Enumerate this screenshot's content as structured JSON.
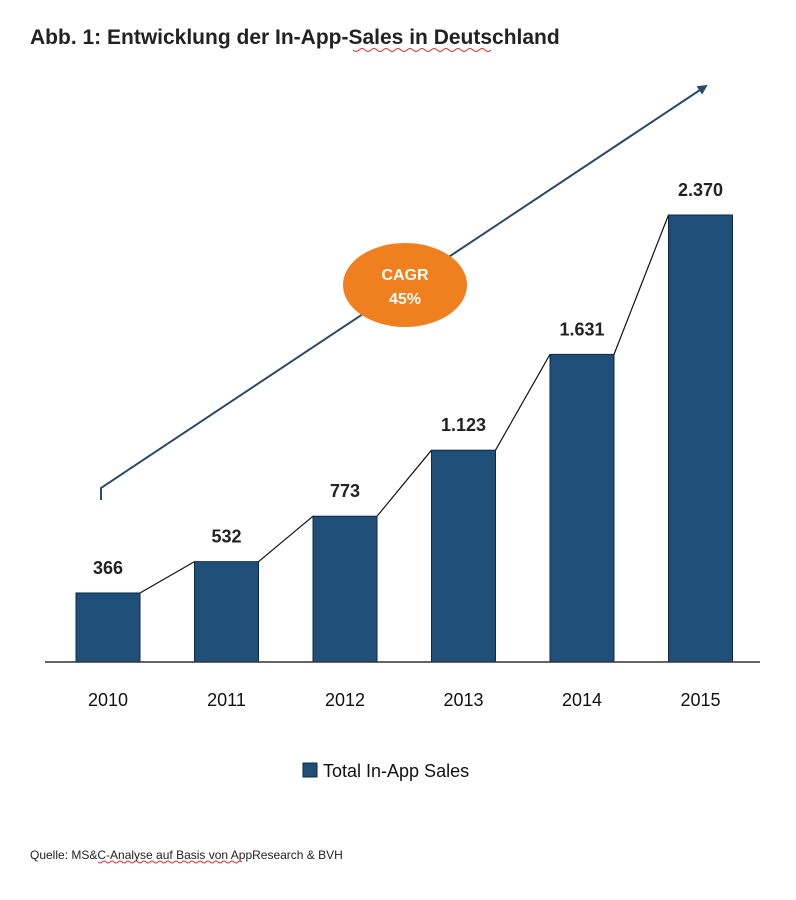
{
  "colors": {
    "bar": "#1f4e79",
    "bar_stroke": "#0d2a44",
    "cagr_fill": "#f07f1f",
    "arrow": "#2b4a6a",
    "axis": "#333333"
  },
  "cagr": {
    "label": "CAGR",
    "value": "45%"
  },
  "source": "Quelle: MS&C-Analyse auf Basis von AppResearch & BVH",
  "chart_data": {
    "type": "bar",
    "title": "Abb. 1: Entwicklung der In-App-Sales in Deutschland",
    "categories": [
      "2010",
      "2011",
      "2012",
      "2013",
      "2014",
      "2015"
    ],
    "series": [
      {
        "name": "Total In-App Sales",
        "values": [
          366,
          532,
          773,
          1123,
          1631,
          2370
        ]
      }
    ],
    "value_labels": [
      "366",
      "532",
      "773",
      "1.123",
      "1.631",
      "2.370"
    ],
    "xlabel": "",
    "ylabel": "",
    "ylim": [
      0,
      2370
    ],
    "grid": false,
    "legend": "bottom-center"
  }
}
